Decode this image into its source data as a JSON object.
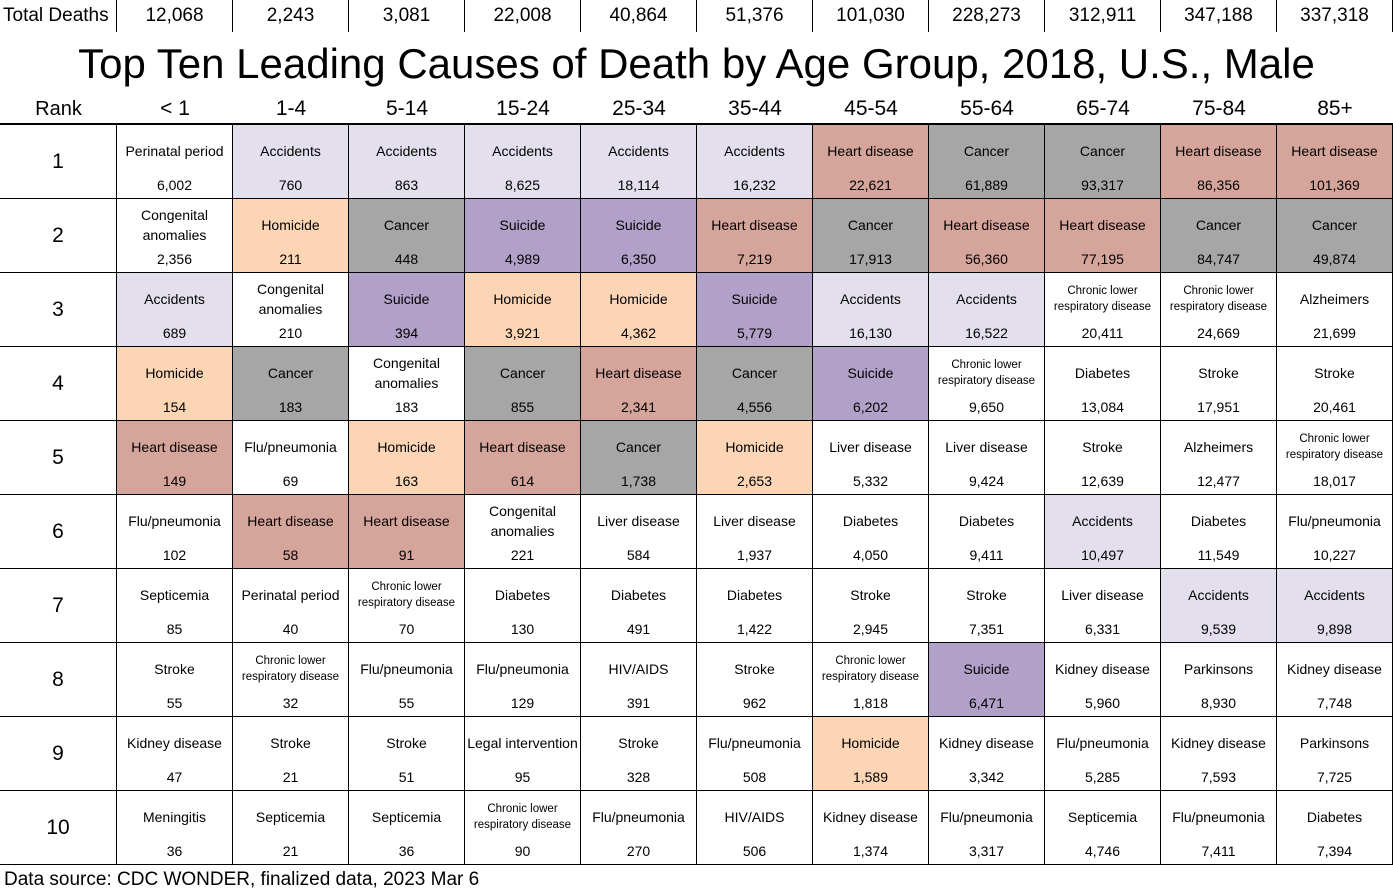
{
  "title": "Top Ten Leading Causes of Death by Age Group, 2018, U.S., Male",
  "source": "Data source: CDC WONDER, finalized data, 2023 Mar 6",
  "totals_label": "Total Deaths",
  "rank_label": "Rank",
  "colors": {
    "Accidents": "#e4dfec",
    "Heart disease": "#d5a49a",
    "Cancer": "#a6a6a6",
    "Suicide": "#b1a0c7",
    "Homicide": "#fcd5b4",
    "default": "#ffffff"
  },
  "chart_data": {
    "type": "table",
    "age_groups": [
      "< 1",
      "1-4",
      "5-14",
      "15-24",
      "25-34",
      "35-44",
      "45-54",
      "55-64",
      "65-74",
      "75-84",
      "85+"
    ],
    "total_deaths": [
      "12,068",
      "2,243",
      "3,081",
      "22,008",
      "40,864",
      "51,376",
      "101,030",
      "228,273",
      "312,911",
      "347,188",
      "337,318"
    ],
    "ranks": [
      "1",
      "2",
      "3",
      "4",
      "5",
      "6",
      "7",
      "8",
      "9",
      "10"
    ],
    "rows": [
      [
        {
          "cause": "Perinatal period",
          "deaths": "6,002"
        },
        {
          "cause": "Accidents",
          "deaths": "760"
        },
        {
          "cause": "Accidents",
          "deaths": "863"
        },
        {
          "cause": "Accidents",
          "deaths": "8,625"
        },
        {
          "cause": "Accidents",
          "deaths": "18,114"
        },
        {
          "cause": "Accidents",
          "deaths": "16,232"
        },
        {
          "cause": "Heart disease",
          "deaths": "22,621"
        },
        {
          "cause": "Cancer",
          "deaths": "61,889"
        },
        {
          "cause": "Cancer",
          "deaths": "93,317"
        },
        {
          "cause": "Heart disease",
          "deaths": "86,356"
        },
        {
          "cause": "Heart disease",
          "deaths": "101,369"
        }
      ],
      [
        {
          "cause": "Congenital anomalies",
          "deaths": "2,356"
        },
        {
          "cause": "Homicide",
          "deaths": "211"
        },
        {
          "cause": "Cancer",
          "deaths": "448"
        },
        {
          "cause": "Suicide",
          "deaths": "4,989"
        },
        {
          "cause": "Suicide",
          "deaths": "6,350"
        },
        {
          "cause": "Heart disease",
          "deaths": "7,219"
        },
        {
          "cause": "Cancer",
          "deaths": "17,913"
        },
        {
          "cause": "Heart disease",
          "deaths": "56,360"
        },
        {
          "cause": "Heart disease",
          "deaths": "77,195"
        },
        {
          "cause": "Cancer",
          "deaths": "84,747"
        },
        {
          "cause": "Cancer",
          "deaths": "49,874"
        }
      ],
      [
        {
          "cause": "Accidents",
          "deaths": "689"
        },
        {
          "cause": "Congenital anomalies",
          "deaths": "210"
        },
        {
          "cause": "Suicide",
          "deaths": "394"
        },
        {
          "cause": "Homicide",
          "deaths": "3,921"
        },
        {
          "cause": "Homicide",
          "deaths": "4,362"
        },
        {
          "cause": "Suicide",
          "deaths": "5,779"
        },
        {
          "cause": "Accidents",
          "deaths": "16,130"
        },
        {
          "cause": "Accidents",
          "deaths": "16,522"
        },
        {
          "cause": "Chronic lower respiratory disease",
          "deaths": "20,411"
        },
        {
          "cause": "Chronic lower respiratory disease",
          "deaths": "24,669"
        },
        {
          "cause": "Alzheimers",
          "deaths": "21,699"
        }
      ],
      [
        {
          "cause": "Homicide",
          "deaths": "154"
        },
        {
          "cause": "Cancer",
          "deaths": "183"
        },
        {
          "cause": "Congenital anomalies",
          "deaths": "183"
        },
        {
          "cause": "Cancer",
          "deaths": "855"
        },
        {
          "cause": "Heart disease",
          "deaths": "2,341"
        },
        {
          "cause": "Cancer",
          "deaths": "4,556"
        },
        {
          "cause": "Suicide",
          "deaths": "6,202"
        },
        {
          "cause": "Chronic lower respiratory disease",
          "deaths": "9,650"
        },
        {
          "cause": "Diabetes",
          "deaths": "13,084"
        },
        {
          "cause": "Stroke",
          "deaths": "17,951"
        },
        {
          "cause": "Stroke",
          "deaths": "20,461"
        }
      ],
      [
        {
          "cause": "Heart disease",
          "deaths": "149"
        },
        {
          "cause": "Flu/pneumonia",
          "deaths": "69"
        },
        {
          "cause": "Homicide",
          "deaths": "163"
        },
        {
          "cause": "Heart disease",
          "deaths": "614"
        },
        {
          "cause": "Cancer",
          "deaths": "1,738"
        },
        {
          "cause": "Homicide",
          "deaths": "2,653"
        },
        {
          "cause": "Liver disease",
          "deaths": "5,332"
        },
        {
          "cause": "Liver disease",
          "deaths": "9,424"
        },
        {
          "cause": "Stroke",
          "deaths": "12,639"
        },
        {
          "cause": "Alzheimers",
          "deaths": "12,477"
        },
        {
          "cause": "Chronic lower respiratory disease",
          "deaths": "18,017"
        }
      ],
      [
        {
          "cause": "Flu/pneumonia",
          "deaths": "102"
        },
        {
          "cause": "Heart disease",
          "deaths": "58"
        },
        {
          "cause": "Heart disease",
          "deaths": "91"
        },
        {
          "cause": "Congenital anomalies",
          "deaths": "221"
        },
        {
          "cause": "Liver disease",
          "deaths": "584"
        },
        {
          "cause": "Liver disease",
          "deaths": "1,937"
        },
        {
          "cause": "Diabetes",
          "deaths": "4,050"
        },
        {
          "cause": "Diabetes",
          "deaths": "9,411"
        },
        {
          "cause": "Accidents",
          "deaths": "10,497"
        },
        {
          "cause": "Diabetes",
          "deaths": "11,549"
        },
        {
          "cause": "Flu/pneumonia",
          "deaths": "10,227"
        }
      ],
      [
        {
          "cause": "Septicemia",
          "deaths": "85"
        },
        {
          "cause": "Perinatal period",
          "deaths": "40"
        },
        {
          "cause": "Chronic lower respiratory disease",
          "deaths": "70"
        },
        {
          "cause": "Diabetes",
          "deaths": "130"
        },
        {
          "cause": "Diabetes",
          "deaths": "491"
        },
        {
          "cause": "Diabetes",
          "deaths": "1,422"
        },
        {
          "cause": "Stroke",
          "deaths": "2,945"
        },
        {
          "cause": "Stroke",
          "deaths": "7,351"
        },
        {
          "cause": "Liver disease",
          "deaths": "6,331"
        },
        {
          "cause": "Accidents",
          "deaths": "9,539"
        },
        {
          "cause": "Accidents",
          "deaths": "9,898"
        }
      ],
      [
        {
          "cause": "Stroke",
          "deaths": "55"
        },
        {
          "cause": "Chronic lower respiratory disease",
          "deaths": "32"
        },
        {
          "cause": "Flu/pneumonia",
          "deaths": "55"
        },
        {
          "cause": "Flu/pneumonia",
          "deaths": "129"
        },
        {
          "cause": "HIV/AIDS",
          "deaths": "391"
        },
        {
          "cause": "Stroke",
          "deaths": "962"
        },
        {
          "cause": "Chronic lower respiratory disease",
          "deaths": "1,818"
        },
        {
          "cause": "Suicide",
          "deaths": "6,471"
        },
        {
          "cause": "Kidney disease",
          "deaths": "5,960"
        },
        {
          "cause": "Parkinsons",
          "deaths": "8,930"
        },
        {
          "cause": "Kidney disease",
          "deaths": "7,748"
        }
      ],
      [
        {
          "cause": "Kidney disease",
          "deaths": "47"
        },
        {
          "cause": "Stroke",
          "deaths": "21"
        },
        {
          "cause": "Stroke",
          "deaths": "51"
        },
        {
          "cause": "Legal intervention",
          "deaths": "95"
        },
        {
          "cause": "Stroke",
          "deaths": "328"
        },
        {
          "cause": "Flu/pneumonia",
          "deaths": "508"
        },
        {
          "cause": "Homicide",
          "deaths": "1,589"
        },
        {
          "cause": "Kidney disease",
          "deaths": "3,342"
        },
        {
          "cause": "Flu/pneumonia",
          "deaths": "5,285"
        },
        {
          "cause": "Kidney disease",
          "deaths": "7,593"
        },
        {
          "cause": "Parkinsons",
          "deaths": "7,725"
        }
      ],
      [
        {
          "cause": "Meningitis",
          "deaths": "36"
        },
        {
          "cause": "Septicemia",
          "deaths": "21"
        },
        {
          "cause": "Septicemia",
          "deaths": "36"
        },
        {
          "cause": "Chronic lower respiratory disease",
          "deaths": "90"
        },
        {
          "cause": "Flu/pneumonia",
          "deaths": "270"
        },
        {
          "cause": "HIV/AIDS",
          "deaths": "506"
        },
        {
          "cause": "Kidney disease",
          "deaths": "1,374"
        },
        {
          "cause": "Flu/pneumonia",
          "deaths": "3,317"
        },
        {
          "cause": "Septicemia",
          "deaths": "4,746"
        },
        {
          "cause": "Flu/pneumonia",
          "deaths": "7,411"
        },
        {
          "cause": "Diabetes",
          "deaths": "7,394"
        }
      ]
    ]
  }
}
